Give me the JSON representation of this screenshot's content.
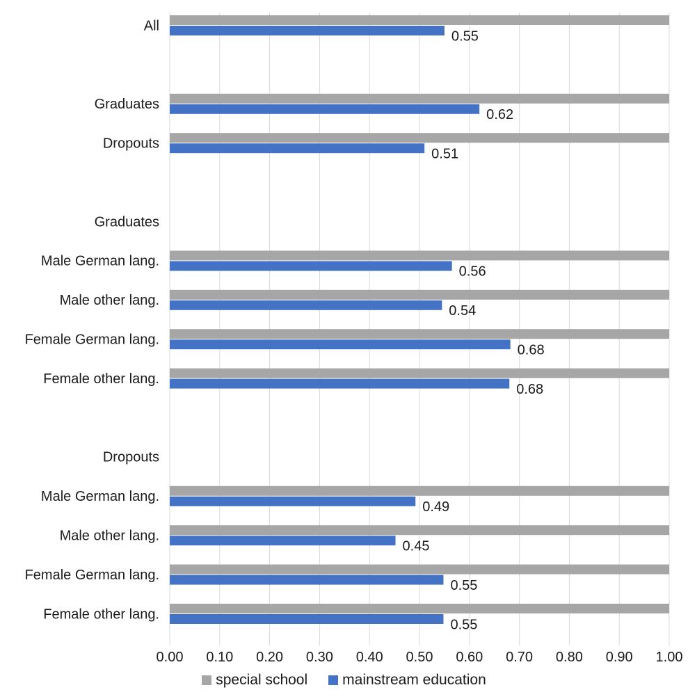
{
  "chart_data": {
    "type": "bar",
    "orientation": "horizontal",
    "categories": [
      "All",
      "",
      "Graduates",
      "Dropouts",
      "",
      "Graduates",
      "Male German lang.",
      "Male other lang.",
      "Female German lang.",
      "Female other lang.",
      "",
      "Dropouts",
      "Male German lang.",
      "Male other lang.",
      "Female German lang.",
      "Female other lang."
    ],
    "series": [
      {
        "name": "special school",
        "color": "#a6a6a6",
        "values": [
          1.0,
          null,
          1.0,
          1.0,
          null,
          null,
          1.0,
          1.0,
          1.0,
          1.0,
          null,
          null,
          1.0,
          1.0,
          1.0,
          1.0
        ]
      },
      {
        "name": "mainstream education",
        "color": "#4472c4",
        "values": [
          0.55,
          null,
          0.62,
          0.51,
          null,
          null,
          0.565,
          0.545,
          0.682,
          0.68,
          null,
          null,
          0.492,
          0.452,
          0.548,
          0.548
        ]
      }
    ],
    "data_labels": [
      "0.55",
      "",
      "0.62",
      "0.51",
      "",
      "",
      "0.56",
      "0.54",
      "0.68",
      "0.68",
      "",
      "",
      "0.49",
      "0.45",
      "0.55",
      "0.55"
    ],
    "x_ticks": [
      "0.00",
      "0.10",
      "0.20",
      "0.30",
      "0.40",
      "0.50",
      "0.60",
      "0.70",
      "0.80",
      "0.90",
      "1.00"
    ],
    "xlim": [
      0,
      1
    ],
    "grid": "vertical",
    "legend_position": "bottom"
  }
}
